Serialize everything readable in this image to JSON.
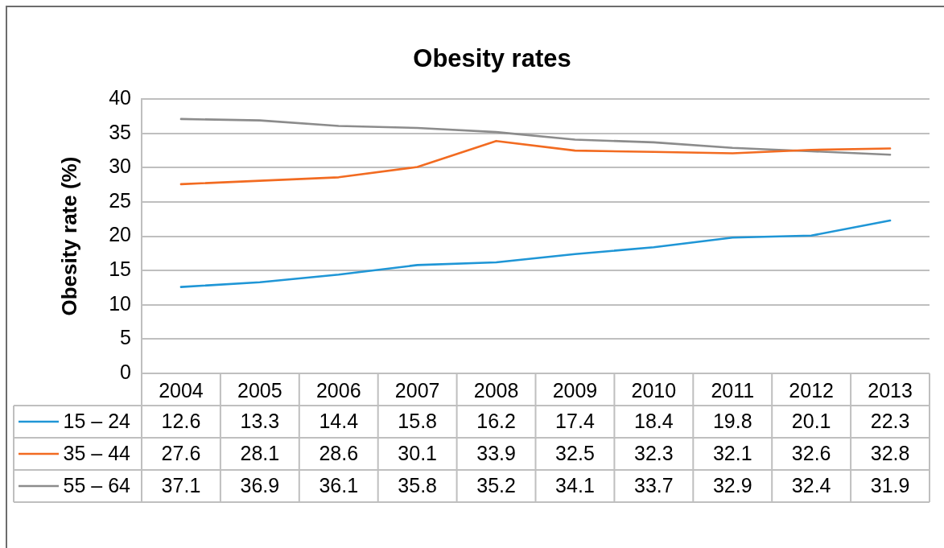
{
  "chart_data": {
    "type": "line",
    "title": "Obesity rates",
    "ylabel": "Obesity rate (%)",
    "categories": [
      "2004",
      "2005",
      "2006",
      "2007",
      "2008",
      "2009",
      "2010",
      "2011",
      "2012",
      "2013"
    ],
    "series": [
      {
        "name": "15 – 24",
        "color": "#1f96d6",
        "values": [
          12.6,
          13.3,
          14.4,
          15.8,
          16.2,
          17.4,
          18.4,
          19.8,
          20.1,
          22.3
        ]
      },
      {
        "name": "35 – 44",
        "color": "#f26b21",
        "values": [
          27.6,
          28.1,
          28.6,
          30.1,
          33.9,
          32.5,
          32.3,
          32.1,
          32.6,
          32.8
        ]
      },
      {
        "name": "55 – 64",
        "color": "#8c8c8c",
        "values": [
          37.1,
          36.9,
          36.1,
          35.8,
          35.2,
          34.1,
          33.7,
          32.9,
          32.4,
          31.9
        ]
      }
    ],
    "ylim": [
      0,
      40
    ],
    "yticks": [
      0,
      5,
      10,
      15,
      20,
      25,
      30,
      35,
      40
    ],
    "grid": "y",
    "legend": "bottom",
    "marker": "none",
    "data_labels": true
  }
}
